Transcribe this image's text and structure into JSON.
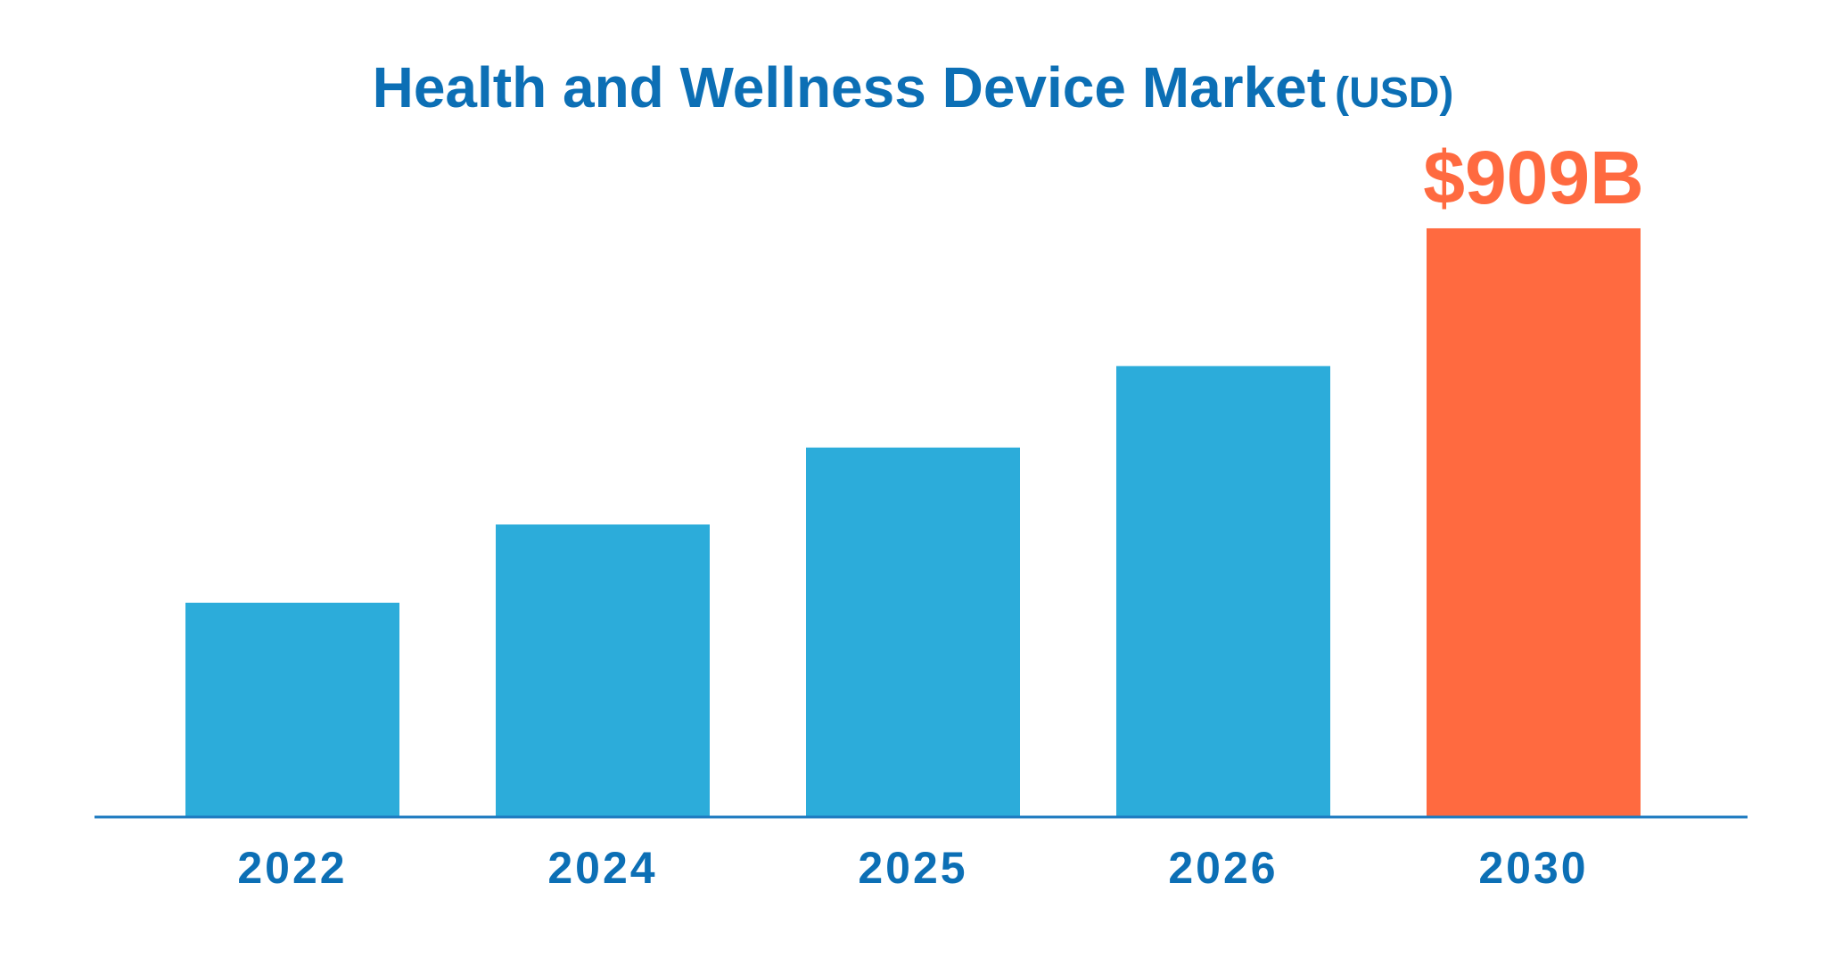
{
  "chart_data": {
    "type": "bar",
    "title": "Health and Wellness Device Market",
    "title_unit": "(USD)",
    "xlabel": "",
    "ylabel": "",
    "categories": [
      "2022",
      "2024",
      "2025",
      "2026",
      "2030"
    ],
    "values": [
      330,
      451,
      570,
      696,
      909
    ],
    "ylim": [
      0,
      1000
    ],
    "grid": false,
    "legend": "none",
    "data_labels": [
      {
        "category": "2030",
        "text": "$909B"
      }
    ],
    "colors": {
      "bar": "#2cacda",
      "highlight_bar": "#ff6a40",
      "highlight_category": "2030",
      "axis": "#1d7ac0",
      "title": "#0c6fb5",
      "tick_label": "#0c6fb5",
      "data_label": "#ff6a40"
    }
  }
}
